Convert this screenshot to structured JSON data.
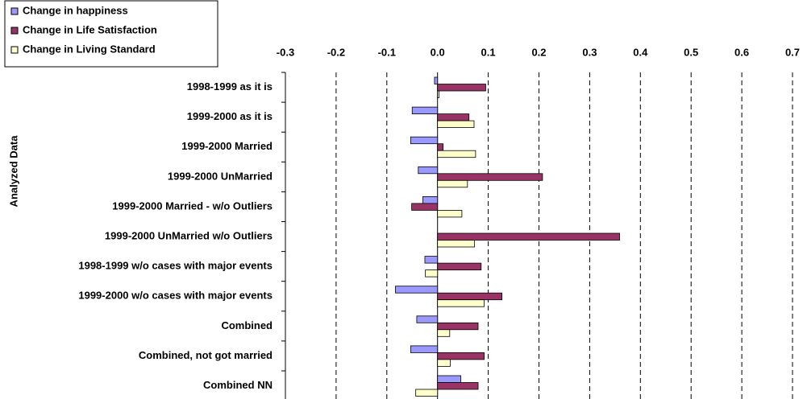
{
  "chart_data": {
    "type": "hbar",
    "y_label": "Analyzed Data",
    "categories": [
      "1998-1999 as it is",
      "1999-2000 as it is",
      "1999-2000 Married",
      "1999-2000 UnMarried",
      "1999-2000 Married - w/o Outliers",
      "1999-2000 UnMarried w/o Outliers",
      "1998-1999 w/o cases with major events",
      "1999-2000 w/o cases with major events",
      "Combined",
      "Combined, not got married",
      "Combined NN"
    ],
    "series": [
      {
        "name": "Change in happiness",
        "color": "#9999ff",
        "values": [
          -0.006,
          -0.05,
          -0.053,
          -0.038,
          -0.029,
          0,
          -0.025,
          -0.083,
          -0.041,
          -0.053,
          0.046
        ]
      },
      {
        "name": "Change in Life Satisfaction",
        "color": "#993366",
        "values": [
          0.095,
          0.062,
          0.011,
          0.207,
          -0.051,
          0.359,
          0.086,
          0.127,
          0.08,
          0.092,
          0.08
        ]
      },
      {
        "name": "Change in Living Standard",
        "color": "#ffffcc",
        "values": [
          0.003,
          0.072,
          0.075,
          0.059,
          0.048,
          0.073,
          -0.024,
          0.092,
          0.024,
          0.025,
          -0.043
        ]
      }
    ],
    "xlim": [
      -0.3,
      0.7
    ],
    "xticks": [
      -0.3,
      -0.2,
      -0.1,
      {
        "value": 0,
        "label": "0.0"
      },
      0.1,
      0.2,
      0.3,
      0.4,
      0.5,
      0.6,
      0.7
    ],
    "grid": true,
    "legend": "top-left"
  }
}
